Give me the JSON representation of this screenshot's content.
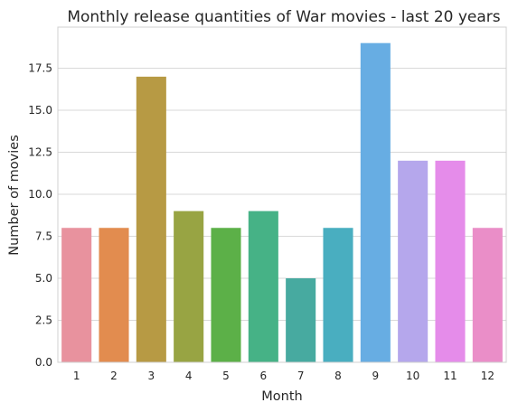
{
  "chart_data": {
    "type": "bar",
    "title": "Monthly release quantities of War movies - last 20 years",
    "xlabel": "Month",
    "ylabel": "Number of movies",
    "categories": [
      "1",
      "2",
      "3",
      "4",
      "5",
      "6",
      "7",
      "8",
      "9",
      "10",
      "11",
      "12"
    ],
    "values": [
      8,
      8,
      17,
      9,
      8,
      9,
      5,
      8,
      19,
      12,
      12,
      8
    ],
    "ylim": [
      0,
      19.95
    ],
    "yticks": [
      "0.0",
      "2.5",
      "5.0",
      "7.5",
      "10.0",
      "12.5",
      "15.0",
      "17.5"
    ],
    "grid": "horizontal",
    "colors": [
      "#e8929e",
      "#e28c4f",
      "#b79a44",
      "#98a443",
      "#5cb048",
      "#46b286",
      "#47aaa0",
      "#49aec0",
      "#67ade3",
      "#b5a7ec",
      "#e58cea",
      "#ea8ec8"
    ]
  }
}
